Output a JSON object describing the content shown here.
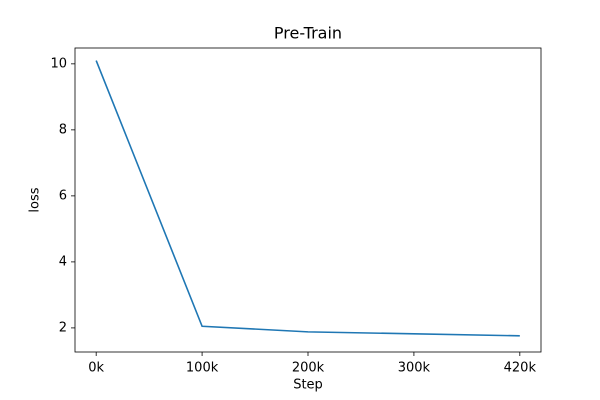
{
  "chart_data": {
    "type": "line",
    "title": "Pre-Train",
    "x_label": "Step",
    "y_label": "loss",
    "categories": [
      "0k",
      "100k",
      "200k",
      "300k",
      "420k"
    ],
    "values": [
      10.1,
      2.05,
      1.88,
      1.82,
      1.76
    ],
    "color": "#1f77b4",
    "ylim": [
      1.27,
      10.48
    ],
    "yticks": [
      2,
      4,
      6,
      8,
      10
    ],
    "grid": false
  }
}
